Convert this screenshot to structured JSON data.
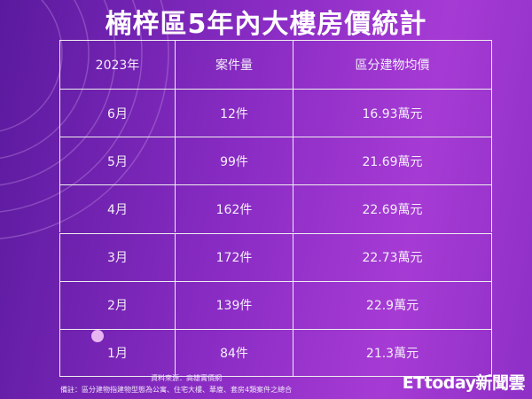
{
  "title": "楠梓區5年內大樓房價統計",
  "table": {
    "header": [
      "2023年",
      "案件量",
      "區分建物均價"
    ],
    "rows": [
      [
        "6月",
        "12件",
        "16.93萬元"
      ],
      [
        "5月",
        "99件",
        "21.69萬元"
      ],
      [
        "4月",
        "162件",
        "22.69萬元"
      ],
      [
        "3月",
        "172件",
        "22.73萬元"
      ],
      [
        "2月",
        "139件",
        "22.9萬元"
      ],
      [
        "1月",
        "84件",
        "21.3萬元"
      ]
    ]
  },
  "footer": {
    "source": "資料來源：高雄實價網",
    "note": "備註：區分建物指建物型態為公寓、住宅大樓、華廈、套房4類案件之總合"
  },
  "logo": "ETtoday新聞雲"
}
